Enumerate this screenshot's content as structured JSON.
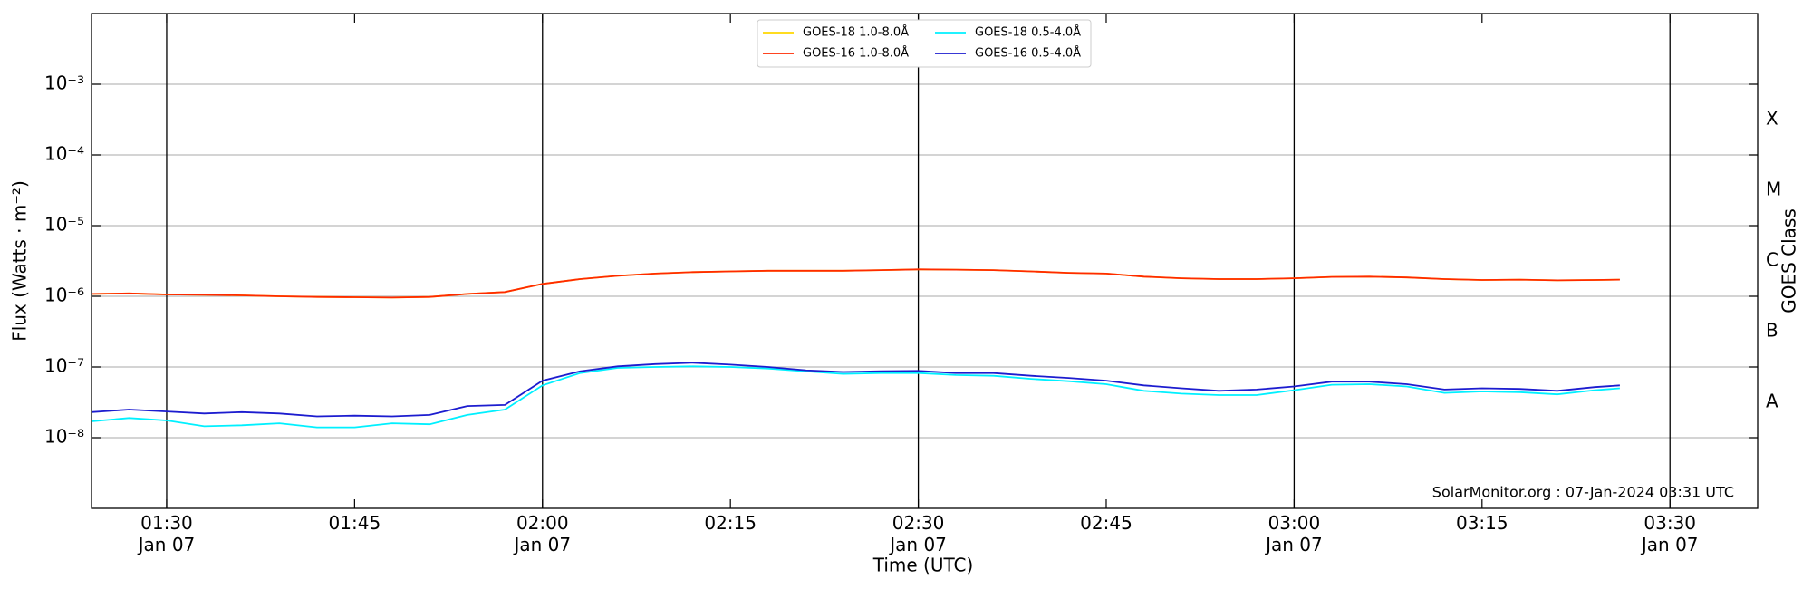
{
  "chart_data": {
    "type": "line",
    "xlabel": "Time (UTC)",
    "ylabel": "Flux (Watts · m⁻²)",
    "y2label": "GOES Class",
    "footer": "SolarMonitor.org : 07-Jan-2024 03:31 UTC",
    "yscale": "log",
    "legend": "upper center",
    "grid": true,
    "x": [
      "01:24",
      "01:27",
      "01:30",
      "01:33",
      "01:36",
      "01:39",
      "01:42",
      "01:45",
      "01:48",
      "01:51",
      "01:54",
      "01:57",
      "02:00",
      "02:03",
      "02:06",
      "02:09",
      "02:12",
      "02:15",
      "02:18",
      "02:21",
      "02:24",
      "02:27",
      "02:30",
      "02:33",
      "02:36",
      "02:39",
      "02:42",
      "02:45",
      "02:48",
      "02:51",
      "02:54",
      "02:57",
      "03:00",
      "03:03",
      "03:06",
      "03:09",
      "03:12",
      "03:15",
      "03:18",
      "03:21",
      "03:24",
      "03:26"
    ],
    "xlim": [
      "01:24",
      "03:37"
    ],
    "xticks": [
      {
        "value": "01:30",
        "label": "01:30\nJan 07"
      },
      {
        "value": "01:45",
        "label": "01:45"
      },
      {
        "value": "02:00",
        "label": "02:00\nJan 07"
      },
      {
        "value": "02:15",
        "label": "02:15"
      },
      {
        "value": "02:30",
        "label": "02:30\nJan 07"
      },
      {
        "value": "02:45",
        "label": "02:45"
      },
      {
        "value": "03:00",
        "label": "03:00\nJan 07"
      },
      {
        "value": "03:15",
        "label": "03:15"
      },
      {
        "value": "03:30",
        "label": "03:30\nJan 07"
      }
    ],
    "ylim": [
      1e-09,
      0.01
    ],
    "yticks": [
      {
        "value": 1e-08,
        "label": "10⁻⁸"
      },
      {
        "value": 1e-07,
        "label": "10⁻⁷"
      },
      {
        "value": 1e-06,
        "label": "10⁻⁶"
      },
      {
        "value": 1e-05,
        "label": "10⁻⁵"
      },
      {
        "value": 0.0001,
        "label": "10⁻⁴"
      },
      {
        "value": 0.001,
        "label": "10⁻³"
      }
    ],
    "y2ticks": [
      {
        "value": 3.16e-08,
        "label": "A"
      },
      {
        "value": 3.16e-07,
        "label": "B"
      },
      {
        "value": 3.16e-06,
        "label": "C"
      },
      {
        "value": 3.16e-05,
        "label": "M"
      },
      {
        "value": 0.000316,
        "label": "X"
      }
    ],
    "series": [
      {
        "name": "GOES-18 1.0-8.0Å",
        "color": "#ffd700",
        "values": [
          1.08e-06,
          1.1e-06,
          1.06e-06,
          1.05e-06,
          1.03e-06,
          1e-06,
          9.8e-07,
          9.7e-07,
          9.6e-07,
          9.8e-07,
          1.08e-06,
          1.15e-06,
          1.5e-06,
          1.75e-06,
          1.95e-06,
          2.1e-06,
          2.2e-06,
          2.25e-06,
          2.3e-06,
          2.3e-06,
          2.3e-06,
          2.35e-06,
          2.4e-06,
          2.38e-06,
          2.35e-06,
          2.25e-06,
          2.15e-06,
          2.1e-06,
          1.9e-06,
          1.8e-06,
          1.75e-06,
          1.75e-06,
          1.8e-06,
          1.88e-06,
          1.9e-06,
          1.85e-06,
          1.75e-06,
          1.7e-06,
          1.72e-06,
          1.68e-06,
          1.7e-06,
          1.72e-06
        ]
      },
      {
        "name": "GOES-16 1.0-8.0Å",
        "color": "#ff2a00",
        "values": [
          1.08e-06,
          1.1e-06,
          1.06e-06,
          1.05e-06,
          1.03e-06,
          1e-06,
          9.8e-07,
          9.7e-07,
          9.6e-07,
          9.8e-07,
          1.08e-06,
          1.15e-06,
          1.5e-06,
          1.75e-06,
          1.95e-06,
          2.1e-06,
          2.2e-06,
          2.25e-06,
          2.3e-06,
          2.3e-06,
          2.3e-06,
          2.35e-06,
          2.4e-06,
          2.38e-06,
          2.35e-06,
          2.25e-06,
          2.15e-06,
          2.1e-06,
          1.9e-06,
          1.8e-06,
          1.75e-06,
          1.75e-06,
          1.8e-06,
          1.88e-06,
          1.9e-06,
          1.85e-06,
          1.75e-06,
          1.7e-06,
          1.72e-06,
          1.68e-06,
          1.7e-06,
          1.72e-06
        ]
      },
      {
        "name": "GOES-18 0.5-4.0Å",
        "color": "#00f0ff",
        "values": [
          1.7e-08,
          1.9e-08,
          1.75e-08,
          1.45e-08,
          1.5e-08,
          1.6e-08,
          1.4e-08,
          1.4e-08,
          1.6e-08,
          1.55e-08,
          2.1e-08,
          2.5e-08,
          5.5e-08,
          8.2e-08,
          9.7e-08,
          1e-07,
          1.02e-07,
          1e-07,
          9.5e-08,
          8.7e-08,
          8e-08,
          8.2e-08,
          8.2e-08,
          7.7e-08,
          7.5e-08,
          6.8e-08,
          6.3e-08,
          5.7e-08,
          4.6e-08,
          4.2e-08,
          4e-08,
          4e-08,
          4.7e-08,
          5.6e-08,
          5.7e-08,
          5.3e-08,
          4.3e-08,
          4.5e-08,
          4.4e-08,
          4.1e-08,
          4.7e-08,
          5e-08
        ]
      },
      {
        "name": "GOES-16 0.5-4.0Å",
        "color": "#1c1ccf",
        "values": [
          2.3e-08,
          2.5e-08,
          2.35e-08,
          2.2e-08,
          2.3e-08,
          2.2e-08,
          2e-08,
          2.05e-08,
          2e-08,
          2.1e-08,
          2.8e-08,
          2.9e-08,
          6.4e-08,
          8.7e-08,
          1.02e-07,
          1.1e-07,
          1.15e-07,
          1.08e-07,
          1e-07,
          9e-08,
          8.5e-08,
          8.7e-08,
          8.8e-08,
          8.2e-08,
          8.2e-08,
          7.5e-08,
          7e-08,
          6.4e-08,
          5.5e-08,
          5e-08,
          4.6e-08,
          4.8e-08,
          5.3e-08,
          6.2e-08,
          6.2e-08,
          5.7e-08,
          4.8e-08,
          5e-08,
          4.9e-08,
          4.6e-08,
          5.2e-08,
          5.5e-08
        ]
      }
    ]
  }
}
